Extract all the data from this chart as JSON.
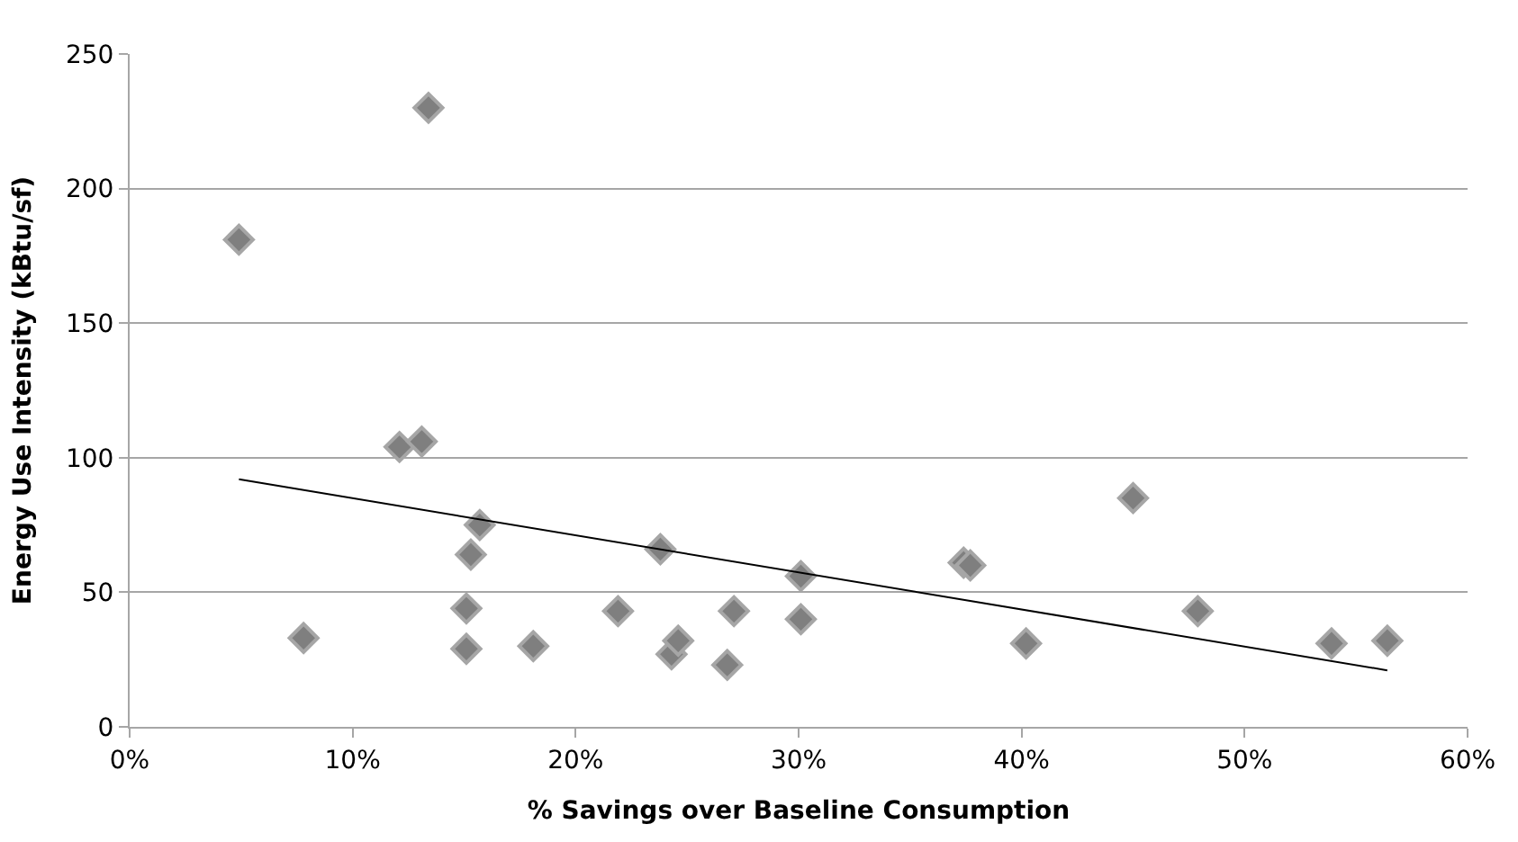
{
  "chart_data": {
    "type": "scatter",
    "xlabel": "% Savings over Baseline Consumption",
    "ylabel": "Energy Use Intensity (kBtu/sf)",
    "xlim": [
      0,
      60
    ],
    "xticks": [
      {
        "value": 0,
        "label": "0%"
      },
      {
        "value": 10,
        "label": "10%"
      },
      {
        "value": 20,
        "label": "20%"
      },
      {
        "value": 30,
        "label": "30%"
      },
      {
        "value": 40,
        "label": "40%"
      },
      {
        "value": 50,
        "label": "50%"
      },
      {
        "value": 60,
        "label": "60%"
      }
    ],
    "ylim": [
      0,
      250
    ],
    "yticks": [
      0,
      50,
      100,
      150,
      200,
      250
    ],
    "grid": "y",
    "legend": false,
    "series": [
      {
        "marker": "diamond",
        "color": "#7f7f7f",
        "x": [
          4.9,
          7.8,
          12.1,
          13.1,
          13.4,
          15.1,
          15.1,
          15.3,
          15.7,
          18.1,
          21.9,
          23.8,
          24.3,
          24.6,
          26.8,
          27.1,
          30.1,
          30.1,
          37.4,
          37.7,
          40.2,
          45.0,
          47.9,
          53.9,
          56.4
        ],
        "values": [
          181,
          33,
          104,
          106,
          230,
          44,
          29,
          64,
          75,
          30,
          43,
          66,
          27,
          32,
          23,
          43,
          56,
          40,
          61,
          60,
          31,
          85,
          43,
          31,
          32
        ]
      },
      {
        "type": "line",
        "marker": "none",
        "color": "#000000",
        "x": [
          4.9,
          56.4
        ],
        "values": [
          92,
          21
        ]
      }
    ]
  }
}
